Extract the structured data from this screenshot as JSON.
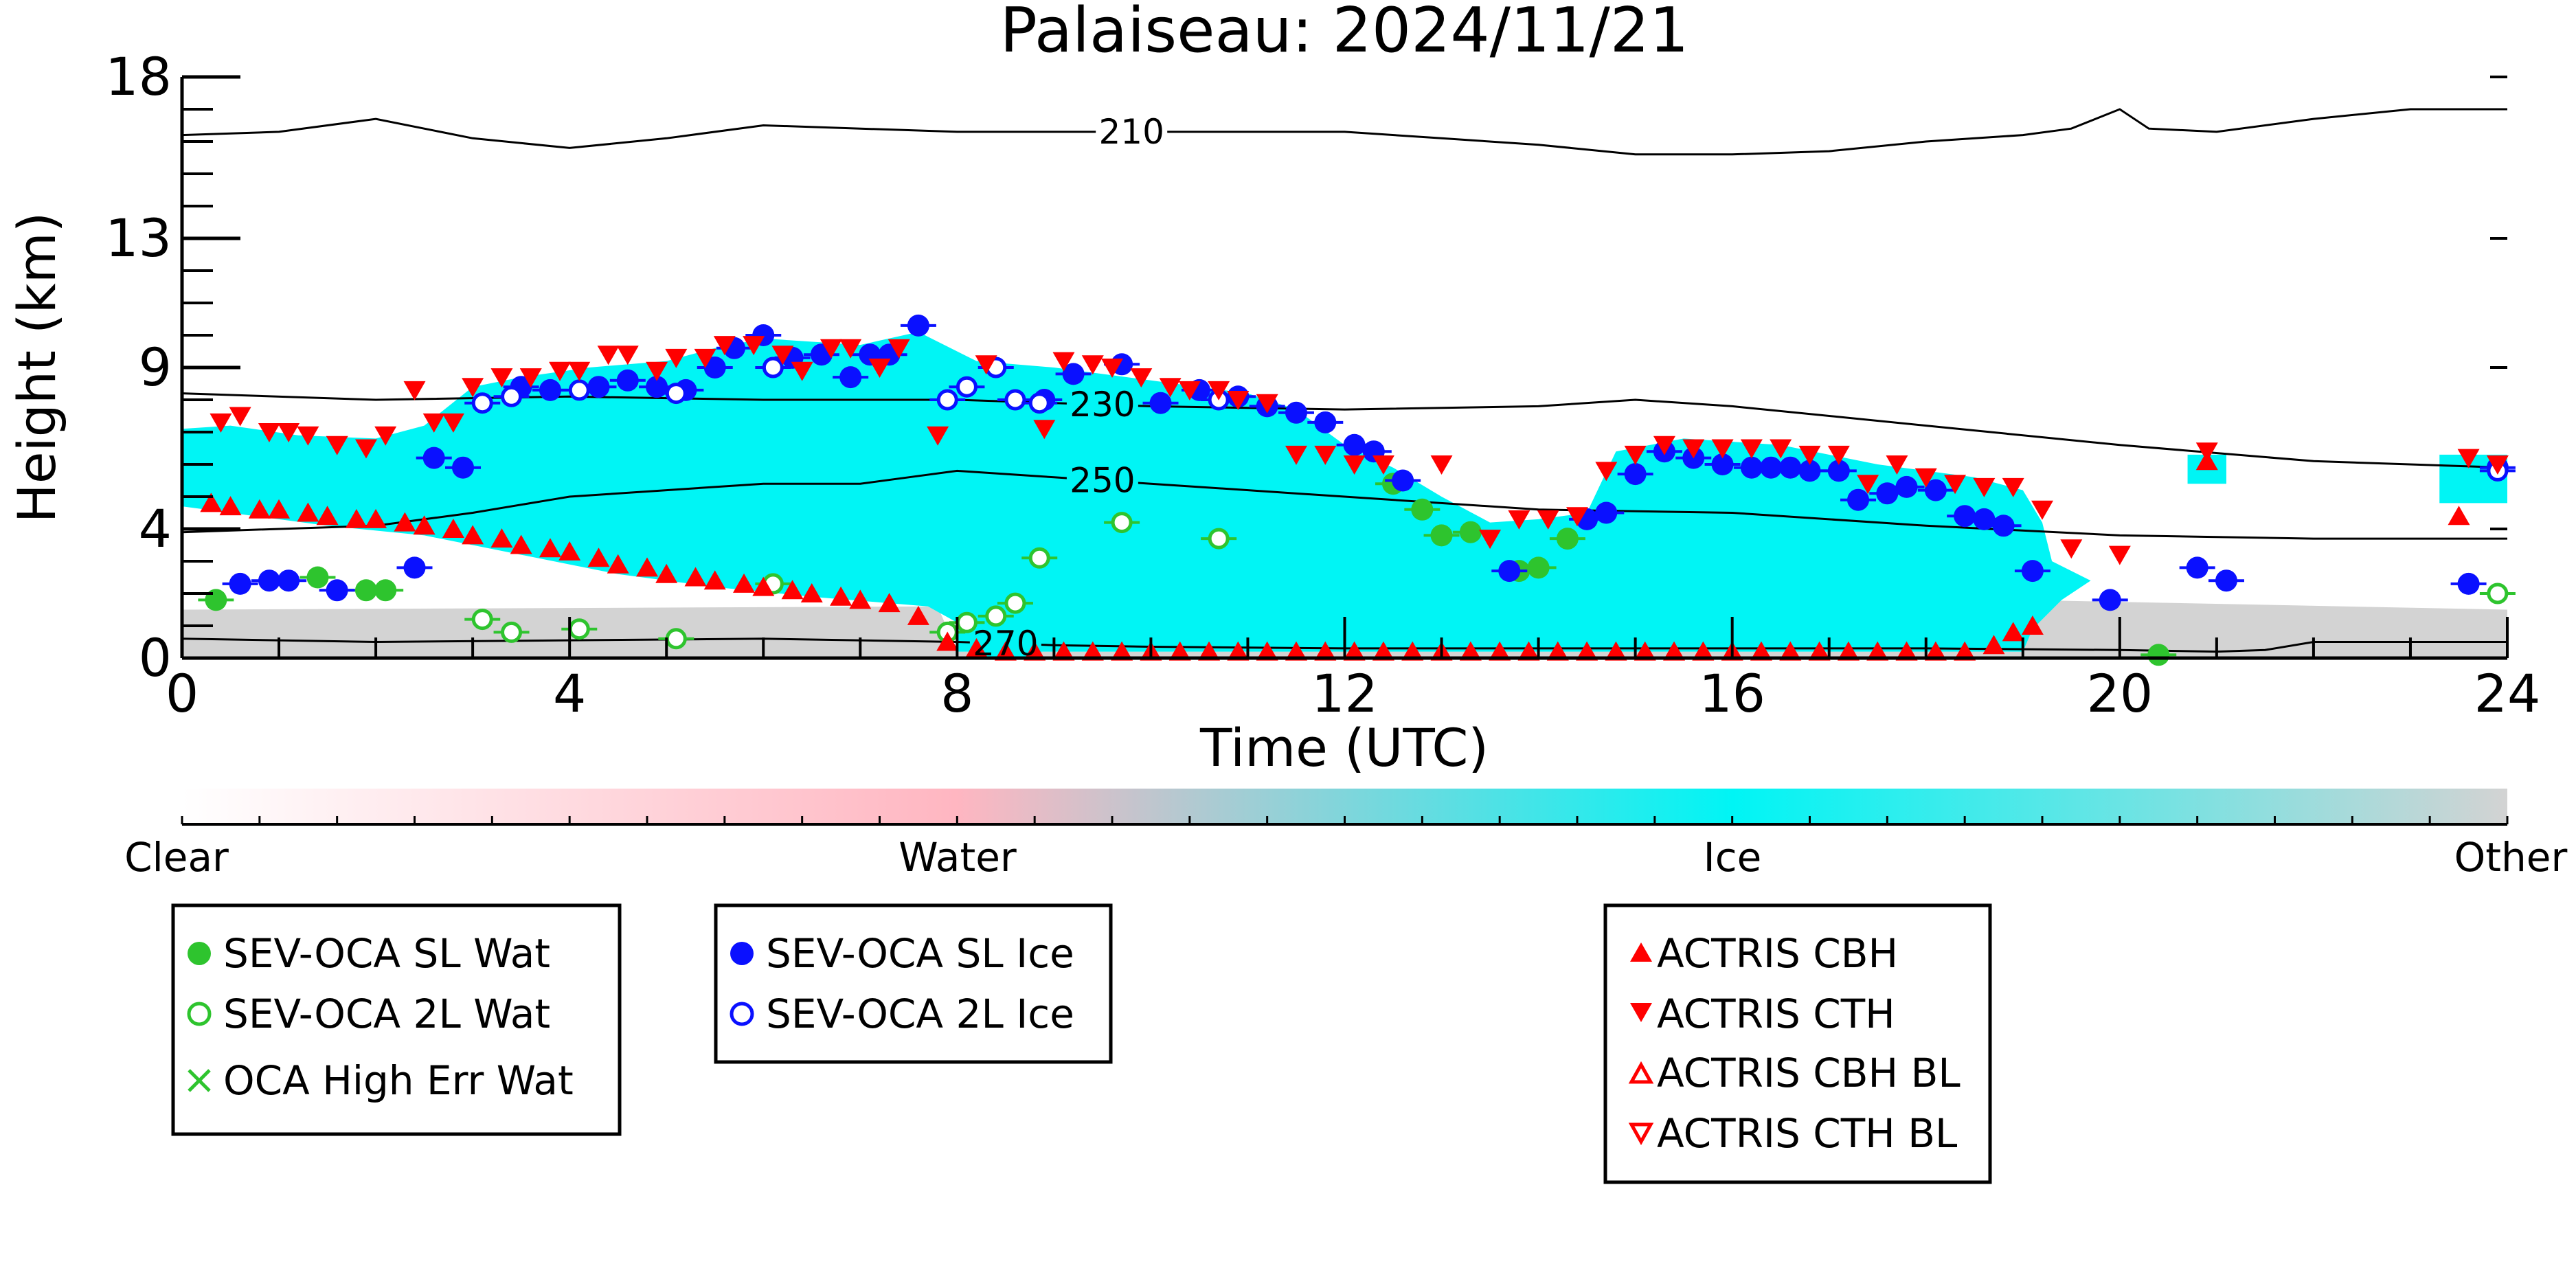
{
  "chart_data": {
    "type": "scatter",
    "title": "Palaiseau: 2024/11/21",
    "xlabel": "Time (UTC)",
    "ylabel": "Height (km)",
    "xlim": [
      0,
      24
    ],
    "ylim": [
      0,
      18
    ],
    "xticks": [
      0,
      4,
      8,
      12,
      16,
      20,
      24
    ],
    "yticks": [
      0,
      4,
      9,
      13,
      18
    ],
    "colorbar": {
      "labels": [
        "Clear",
        "Water",
        "Ice",
        "Other"
      ],
      "positions": [
        0,
        1,
        2,
        3
      ],
      "colors": [
        "#ffffff",
        "#ffb6c1",
        "#00f5f5",
        "#d3d3d3"
      ]
    },
    "contours": [
      {
        "label": "210",
        "points": [
          [
            0,
            16.2
          ],
          [
            1,
            16.3
          ],
          [
            2,
            16.7
          ],
          [
            3,
            16.1
          ],
          [
            4,
            15.8
          ],
          [
            5,
            16.1
          ],
          [
            6,
            16.5
          ],
          [
            8,
            16.3
          ],
          [
            10,
            16.3
          ],
          [
            12,
            16.3
          ],
          [
            13,
            16.1
          ],
          [
            14,
            15.9
          ],
          [
            15,
            15.6
          ],
          [
            16,
            15.6
          ],
          [
            17,
            15.7
          ],
          [
            18,
            16.0
          ],
          [
            19,
            16.2
          ],
          [
            19.5,
            16.4
          ],
          [
            20,
            17.0
          ],
          [
            20.3,
            16.4
          ],
          [
            21,
            16.3
          ],
          [
            22,
            16.7
          ],
          [
            23,
            17.0
          ],
          [
            24,
            17.0
          ]
        ],
        "label_x": 9.8
      },
      {
        "label": "230",
        "points": [
          [
            0,
            8.2
          ],
          [
            2,
            8.0
          ],
          [
            4,
            8.1
          ],
          [
            6,
            8.0
          ],
          [
            8,
            8.0
          ],
          [
            10,
            7.8
          ],
          [
            12,
            7.7
          ],
          [
            14,
            7.8
          ],
          [
            15,
            8.0
          ],
          [
            16,
            7.8
          ],
          [
            18,
            7.2
          ],
          [
            20,
            6.6
          ],
          [
            22,
            6.1
          ],
          [
            24,
            5.9
          ]
        ],
        "label_x": 9.5
      },
      {
        "label": "250",
        "points": [
          [
            0,
            3.9
          ],
          [
            2,
            4.1
          ],
          [
            3,
            4.5
          ],
          [
            3.8,
            4.9
          ],
          [
            4,
            5.0
          ],
          [
            5,
            5.2
          ],
          [
            6,
            5.4
          ],
          [
            7,
            5.4
          ],
          [
            7.5,
            5.6
          ],
          [
            8,
            5.8
          ],
          [
            9,
            5.6
          ],
          [
            10,
            5.4
          ],
          [
            12,
            5.0
          ],
          [
            14,
            4.6
          ],
          [
            16,
            4.5
          ],
          [
            18,
            4.1
          ],
          [
            20,
            3.8
          ],
          [
            22,
            3.7
          ],
          [
            24,
            3.7
          ]
        ],
        "label_x": 9.5
      },
      {
        "label": "270",
        "points": [
          [
            0,
            0.6
          ],
          [
            2,
            0.5
          ],
          [
            4,
            0.55
          ],
          [
            6,
            0.6
          ],
          [
            8,
            0.5
          ],
          [
            9,
            0.4
          ],
          [
            10,
            0.35
          ],
          [
            12,
            0.3
          ],
          [
            14,
            0.3
          ],
          [
            16,
            0.3
          ],
          [
            18,
            0.3
          ],
          [
            20,
            0.25
          ],
          [
            21,
            0.2
          ],
          [
            21.5,
            0.25
          ],
          [
            22,
            0.5
          ],
          [
            23,
            0.5
          ],
          [
            24,
            0.5
          ]
        ],
        "label_x": 8.5
      }
    ],
    "series": [
      {
        "name": "SEV-OCA SL Wat",
        "color": "#2ec42e",
        "marker": "circle-filled",
        "x": [
          0.35,
          1.4,
          1.9,
          2.1,
          12.5,
          12.8,
          13.0,
          13.3,
          13.8,
          14.0,
          14.3,
          20.4
        ],
        "y": [
          1.8,
          2.5,
          2.1,
          2.1,
          5.4,
          4.6,
          3.8,
          3.9,
          2.7,
          2.8,
          3.7,
          0.1
        ]
      },
      {
        "name": "SEV-OCA 2L Wat",
        "color": "#2ec42e",
        "marker": "circle-open",
        "x": [
          3.1,
          3.4,
          4.1,
          5.1,
          6.1,
          7.9,
          8.1,
          8.4,
          8.6,
          8.85,
          9.7,
          10.7,
          23.9
        ],
        "y": [
          1.2,
          0.8,
          0.9,
          0.6,
          2.3,
          0.8,
          1.1,
          1.3,
          1.7,
          3.1,
          4.2,
          3.7,
          2.0
        ]
      },
      {
        "name": "SEV-OCA SL Ice",
        "color": "#0a10ff",
        "marker": "circle-filled",
        "x": [
          0.6,
          0.9,
          1.1,
          1.6,
          2.4,
          2.6,
          2.9,
          3.5,
          3.8,
          4.3,
          4.6,
          4.9,
          5.2,
          5.5,
          5.7,
          6.0,
          6.3,
          6.6,
          6.9,
          7.1,
          7.3,
          7.6,
          8.9,
          9.2,
          9.7,
          10.1,
          10.5,
          10.9,
          11.2,
          11.5,
          11.8,
          12.1,
          12.3,
          12.6,
          13.7,
          14.5,
          14.7,
          15.0,
          15.3,
          15.6,
          15.9,
          16.2,
          16.4,
          16.6,
          16.8,
          17.1,
          17.3,
          17.6,
          17.8,
          18.1,
          18.4,
          18.6,
          18.8,
          19.1,
          19.9,
          20.8,
          21.1,
          23.6,
          23.9
        ],
        "y": [
          2.3,
          2.4,
          2.4,
          2.1,
          2.8,
          6.2,
          5.9,
          8.4,
          8.3,
          8.4,
          8.6,
          8.4,
          8.3,
          9.0,
          9.6,
          10.0,
          9.3,
          9.4,
          8.7,
          9.4,
          9.4,
          10.3,
          8.0,
          8.8,
          9.1,
          7.9,
          8.3,
          8.1,
          7.8,
          7.6,
          7.3,
          6.6,
          6.4,
          5.5,
          2.7,
          4.3,
          4.5,
          5.7,
          6.4,
          6.2,
          6.0,
          5.9,
          5.9,
          5.9,
          5.8,
          5.8,
          4.9,
          5.1,
          5.3,
          5.2,
          4.4,
          4.3,
          4.1,
          2.7,
          1.8,
          2.8,
          2.4,
          2.3,
          5.9
        ]
      },
      {
        "name": "SEV-OCA 2L Ice",
        "color": "#0a10ff",
        "marker": "circle-open",
        "x": [
          3.1,
          3.4,
          4.1,
          5.1,
          6.1,
          7.9,
          8.1,
          8.4,
          8.6,
          8.85,
          10.7,
          23.9
        ],
        "y": [
          7.9,
          8.1,
          8.3,
          8.2,
          9.0,
          8.0,
          8.4,
          9.0,
          8.0,
          7.9,
          8.0,
          5.8
        ]
      },
      {
        "name": "ACTRIS CBH",
        "color": "#ff0000",
        "marker": "triangle-up",
        "x": [
          0.3,
          0.5,
          0.8,
          1.0,
          1.3,
          1.5,
          1.8,
          2.0,
          2.3,
          2.5,
          2.8,
          3.0,
          3.3,
          3.5,
          3.8,
          4.0,
          4.3,
          4.5,
          4.8,
          5.0,
          5.3,
          5.5,
          5.8,
          6.0,
          6.3,
          6.5,
          6.8,
          7.0,
          7.3,
          7.6,
          7.9,
          8.2,
          8.5,
          8.8,
          9.1,
          9.4,
          9.7,
          10.0,
          10.3,
          10.6,
          10.9,
          11.2,
          11.5,
          11.8,
          12.1,
          12.4,
          12.7,
          13.0,
          13.3,
          13.6,
          13.9,
          14.2,
          14.5,
          14.8,
          15.1,
          15.4,
          15.7,
          16.0,
          16.3,
          16.6,
          16.9,
          17.2,
          17.5,
          17.8,
          18.1,
          18.4,
          18.7,
          18.9,
          19.1,
          20.9,
          23.5
        ],
        "y": [
          4.8,
          4.7,
          4.6,
          4.6,
          4.5,
          4.4,
          4.3,
          4.3,
          4.2,
          4.1,
          4.0,
          3.8,
          3.7,
          3.5,
          3.4,
          3.3,
          3.1,
          2.9,
          2.8,
          2.6,
          2.5,
          2.4,
          2.3,
          2.2,
          2.1,
          2.0,
          1.9,
          1.8,
          1.7,
          1.3,
          0.5,
          0.3,
          0.2,
          0.2,
          0.2,
          0.2,
          0.2,
          0.2,
          0.2,
          0.2,
          0.2,
          0.2,
          0.2,
          0.2,
          0.2,
          0.2,
          0.2,
          0.2,
          0.2,
          0.2,
          0.2,
          0.2,
          0.2,
          0.2,
          0.2,
          0.2,
          0.2,
          0.2,
          0.2,
          0.2,
          0.2,
          0.2,
          0.2,
          0.2,
          0.2,
          0.2,
          0.4,
          0.8,
          1.0,
          6.1,
          4.4
        ]
      },
      {
        "name": "ACTRIS CTH",
        "color": "#ff0000",
        "marker": "triangle-down",
        "x": [
          0.4,
          0.6,
          0.9,
          1.1,
          1.3,
          1.6,
          1.9,
          2.1,
          2.4,
          2.6,
          2.8,
          3.0,
          3.3,
          3.6,
          3.9,
          4.1,
          4.4,
          4.6,
          4.9,
          5.1,
          5.4,
          5.6,
          5.9,
          6.2,
          6.4,
          6.7,
          6.9,
          7.2,
          7.4,
          7.8,
          8.3,
          8.9,
          9.1,
          9.4,
          9.6,
          9.9,
          10.2,
          10.4,
          10.7,
          10.9,
          11.2,
          11.5,
          11.8,
          12.1,
          12.4,
          13.0,
          13.5,
          13.8,
          14.1,
          14.4,
          14.7,
          15.0,
          15.3,
          15.6,
          15.9,
          16.2,
          16.5,
          16.8,
          17.1,
          17.4,
          17.7,
          18.0,
          18.3,
          18.6,
          18.9,
          19.2,
          19.5,
          20.0,
          20.9,
          23.9,
          23.6
        ],
        "y": [
          7.3,
          7.5,
          7.0,
          7.0,
          6.9,
          6.6,
          6.5,
          6.9,
          8.3,
          7.3,
          7.3,
          8.4,
          8.7,
          8.7,
          8.9,
          8.9,
          9.4,
          9.4,
          8.9,
          9.3,
          9.3,
          9.7,
          9.7,
          9.4,
          8.9,
          9.6,
          9.6,
          9.0,
          9.6,
          6.9,
          9.1,
          7.1,
          9.2,
          9.1,
          9.0,
          8.7,
          8.4,
          8.3,
          8.3,
          8.0,
          7.9,
          6.3,
          6.3,
          6.0,
          6.0,
          6.0,
          3.7,
          4.3,
          4.3,
          4.4,
          5.8,
          6.3,
          6.6,
          6.5,
          6.5,
          6.5,
          6.5,
          6.3,
          6.3,
          5.4,
          6.0,
          5.6,
          5.4,
          5.3,
          5.3,
          4.6,
          3.4,
          3.2,
          6.4,
          6.0,
          6.2
        ]
      }
    ],
    "legend": [
      [
        "SEV-OCA SL Wat",
        "SEV-OCA 2L Wat",
        "OCA High Err Wat"
      ],
      [
        "SEV-OCA SL Ice",
        "SEV-OCA 2L Ice"
      ],
      [
        "ACTRIS CBH",
        "ACTRIS CTH",
        "ACTRIS CBH BL",
        "ACTRIS CTH BL"
      ]
    ]
  }
}
